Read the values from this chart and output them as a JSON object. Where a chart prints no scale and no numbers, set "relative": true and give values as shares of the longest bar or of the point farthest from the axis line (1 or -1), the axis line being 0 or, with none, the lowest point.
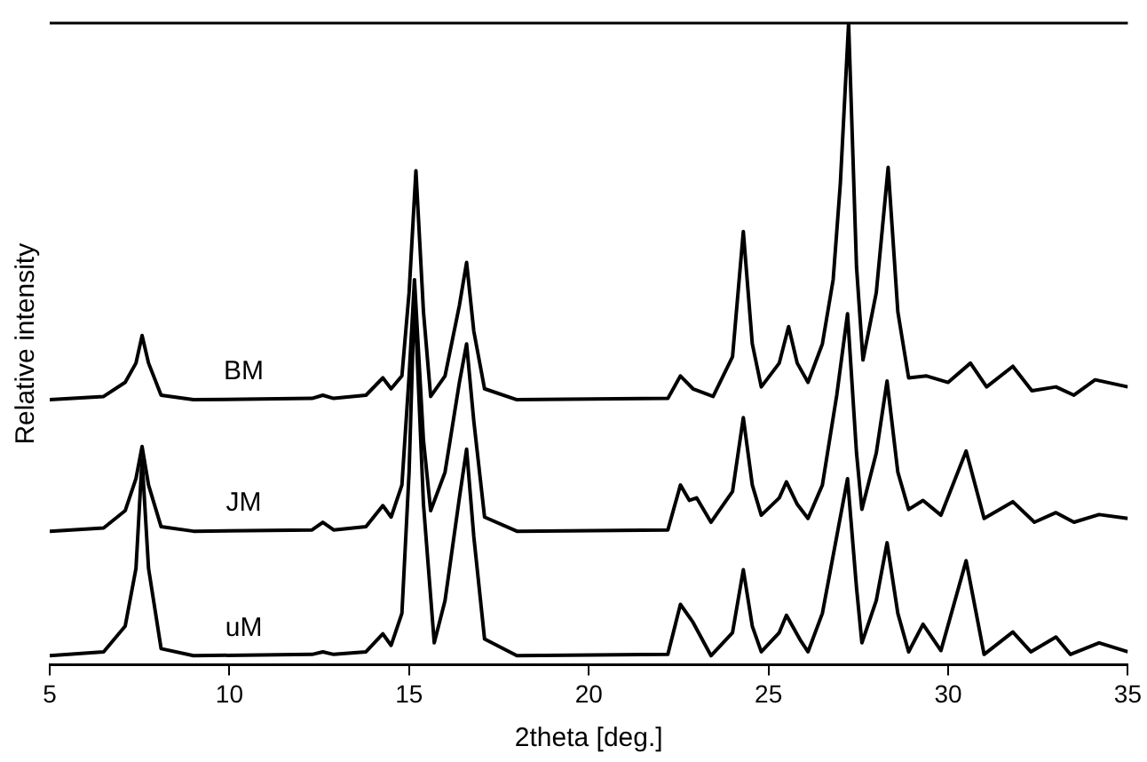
{
  "chart_data": {
    "type": "line",
    "relative": true,
    "xlabel": "2theta [deg.]",
    "ylabel": "Relative intensity",
    "xlim": [
      5,
      35
    ],
    "xticks": [
      5,
      10,
      15,
      20,
      25,
      30,
      35
    ],
    "legend": false,
    "grid": false,
    "marker": "none",
    "line_style": "solid",
    "series": [
      {
        "name": "BM",
        "color": "#000000",
        "x": [
          5,
          6.5,
          7.1,
          7.4,
          7.57,
          7.75,
          8.1,
          9,
          12.3,
          12.6,
          12.9,
          13.8,
          14.27,
          14.5,
          14.8,
          15.0,
          15.19,
          15.4,
          15.6,
          16.0,
          16.4,
          16.6,
          16.8,
          17.1,
          18,
          22.2,
          22.55,
          22.9,
          23.46,
          24.0,
          24.3,
          24.55,
          24.8,
          25.3,
          25.56,
          25.8,
          26.1,
          26.5,
          26.8,
          27.0,
          27.23,
          27.45,
          27.63,
          28.0,
          28.33,
          28.6,
          28.9,
          29.4,
          30.0,
          30.62,
          31.07,
          31.8,
          32.33,
          33.0,
          33.5,
          34.09,
          35
        ],
        "values": [
          0.413,
          0.418,
          0.44,
          0.47,
          0.513,
          0.47,
          0.42,
          0.413,
          0.415,
          0.42,
          0.415,
          0.42,
          0.447,
          0.43,
          0.45,
          0.58,
          0.77,
          0.55,
          0.418,
          0.45,
          0.56,
          0.627,
          0.52,
          0.43,
          0.413,
          0.415,
          0.45,
          0.43,
          0.418,
          0.48,
          0.675,
          0.5,
          0.433,
          0.47,
          0.527,
          0.47,
          0.44,
          0.5,
          0.6,
          0.75,
          1,
          0.62,
          0.475,
          0.58,
          0.775,
          0.55,
          0.447,
          0.45,
          0.44,
          0.47,
          0.433,
          0.465,
          0.427,
          0.433,
          0.42,
          0.444,
          0.433
        ]
      },
      {
        "name": "JM",
        "color": "#000000",
        "x": [
          5,
          6.5,
          7.1,
          7.4,
          7.57,
          7.75,
          8.1,
          9,
          12.3,
          12.6,
          12.9,
          13.8,
          14.27,
          14.5,
          14.8,
          15.0,
          15.15,
          15.4,
          15.6,
          16.0,
          16.4,
          16.6,
          16.8,
          17.1,
          18,
          22.2,
          22.55,
          22.8,
          23.0,
          23.4,
          24.0,
          24.3,
          24.55,
          24.8,
          25.3,
          25.5,
          25.8,
          26.1,
          26.5,
          26.9,
          27.2,
          27.45,
          27.6,
          28.0,
          28.3,
          28.6,
          28.9,
          29.3,
          29.8,
          30.5,
          31.0,
          31.8,
          32.4,
          33.0,
          33.5,
          34.2,
          35
        ],
        "values": [
          0.208,
          0.213,
          0.24,
          0.29,
          0.34,
          0.28,
          0.215,
          0.208,
          0.21,
          0.222,
          0.21,
          0.215,
          0.248,
          0.23,
          0.28,
          0.45,
          0.6,
          0.35,
          0.24,
          0.3,
          0.44,
          0.5,
          0.38,
          0.23,
          0.208,
          0.21,
          0.28,
          0.256,
          0.26,
          0.222,
          0.27,
          0.385,
          0.28,
          0.233,
          0.26,
          0.285,
          0.25,
          0.228,
          0.28,
          0.42,
          0.547,
          0.33,
          0.242,
          0.33,
          0.442,
          0.3,
          0.242,
          0.256,
          0.233,
          0.333,
          0.228,
          0.254,
          0.222,
          0.237,
          0.222,
          0.234,
          0.228
        ]
      },
      {
        "name": "uM",
        "color": "#000000",
        "x": [
          5,
          6.5,
          7.1,
          7.4,
          7.57,
          7.75,
          8.1,
          9,
          12.3,
          12.6,
          12.9,
          13.8,
          14.27,
          14.5,
          14.8,
          15.0,
          15.15,
          15.4,
          15.7,
          16.0,
          16.4,
          16.6,
          16.8,
          17.1,
          18,
          22.2,
          22.55,
          22.9,
          23.4,
          24.0,
          24.3,
          24.55,
          24.8,
          25.3,
          25.5,
          25.9,
          26.1,
          26.5,
          26.9,
          27.2,
          27.45,
          27.6,
          28.0,
          28.3,
          28.6,
          28.9,
          29.3,
          29.8,
          30.5,
          31.0,
          31.8,
          32.3,
          33.0,
          33.4,
          34.2,
          35
        ],
        "values": [
          0.014,
          0.02,
          0.06,
          0.15,
          0.32,
          0.15,
          0.025,
          0.014,
          0.016,
          0.02,
          0.016,
          0.02,
          0.048,
          0.03,
          0.08,
          0.3,
          0.58,
          0.25,
          0.034,
          0.1,
          0.26,
          0.336,
          0.2,
          0.04,
          0.014,
          0.016,
          0.094,
          0.066,
          0.014,
          0.05,
          0.148,
          0.06,
          0.02,
          0.05,
          0.077,
          0.037,
          0.02,
          0.08,
          0.2,
          0.29,
          0.12,
          0.034,
          0.1,
          0.19,
          0.08,
          0.02,
          0.063,
          0.022,
          0.162,
          0.016,
          0.051,
          0.02,
          0.043,
          0.016,
          0.034,
          0.02
        ]
      }
    ]
  }
}
